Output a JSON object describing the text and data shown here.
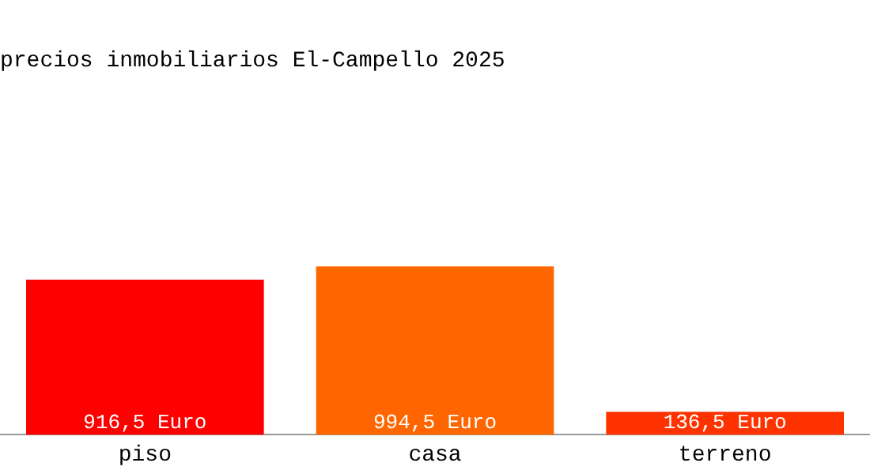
{
  "chart_data": {
    "type": "bar",
    "title": "precios inmobiliarios El-Campello 2025",
    "categories": [
      "piso",
      "casa",
      "terreno"
    ],
    "tick_labels": "x",
    "series": [
      {
        "values": [
          916.5,
          994.5,
          136.5
        ],
        "colors": [
          "#ff0000",
          "#ff6600",
          "#ff3300"
        ],
        "value_labels": [
          "916,5 Euro",
          "994,5 Euro",
          "136,5 Euro"
        ]
      }
    ],
    "grid": false,
    "legend": false
  }
}
